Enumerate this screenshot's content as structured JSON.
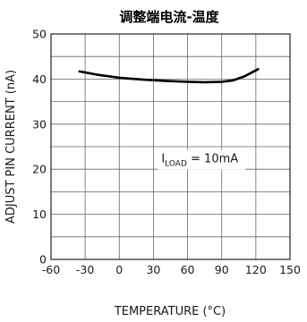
{
  "chart_data": {
    "type": "line",
    "title": "调整端电流-温度",
    "xlabel": "TEMPERATURE (°C)",
    "ylabel": "ADJUST PIN CURRENT (nA)",
    "xlim": [
      -60,
      150
    ],
    "ylim": [
      0,
      50
    ],
    "x_ticks": [
      "-60",
      "-30",
      "0",
      "30",
      "60",
      "90",
      "120",
      "150"
    ],
    "y_ticks": [
      "0",
      "10",
      "20",
      "30",
      "40",
      "50"
    ],
    "grid": true,
    "annotation": {
      "main": "I",
      "sub": "LOAD",
      "rest": " = 10mA",
      "x": 37,
      "y": 21.5
    },
    "series": [
      {
        "x": [
          -35,
          -20,
          0,
          20,
          40,
          60,
          75,
          90,
          100,
          110,
          122
        ],
        "y": [
          41.7,
          41.0,
          40.3,
          39.9,
          39.6,
          39.4,
          39.3,
          39.4,
          39.7,
          40.6,
          42.2
        ]
      }
    ]
  }
}
